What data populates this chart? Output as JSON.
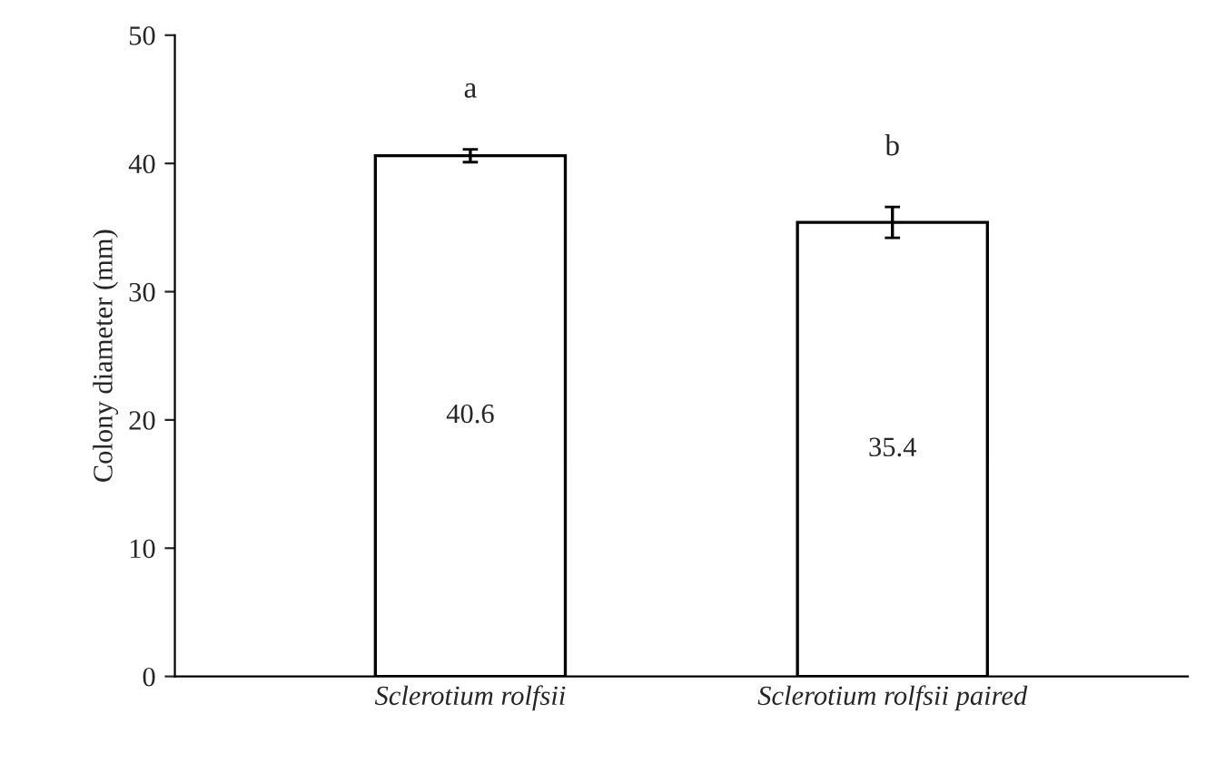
{
  "chart_data": {
    "type": "bar",
    "ylabel": "Colony diameter (mm)",
    "categories": [
      "Sclerotium rolfsii",
      "Sclerotium rolfsii paired"
    ],
    "values": [
      40.6,
      35.4
    ],
    "errors": [
      0.5,
      1.2
    ],
    "color": "#ffffff",
    "data_labels": true,
    "ylim": [
      0,
      50
    ],
    "yticks": [
      0,
      10,
      20,
      30,
      40,
      50
    ],
    "grid": false,
    "legend": false,
    "annotations": [
      "a",
      "b"
    ]
  }
}
